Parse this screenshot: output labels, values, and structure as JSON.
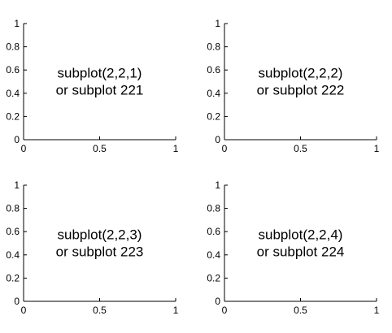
{
  "chart_data": [
    {
      "type": "scatter",
      "subplot": "2,2,1",
      "xlim": [
        0,
        1
      ],
      "ylim": [
        0,
        1
      ],
      "x_ticks": [
        "0",
        "0.5",
        "1"
      ],
      "y_ticks": [
        "0",
        "0.2",
        "0.4",
        "0.6",
        "0.8",
        "1"
      ],
      "grid": false,
      "series": [],
      "annotation": [
        "subplot(2,2,1)",
        "or subplot 221"
      ]
    },
    {
      "type": "scatter",
      "subplot": "2,2,2",
      "xlim": [
        0,
        1
      ],
      "ylim": [
        0,
        1
      ],
      "x_ticks": [
        "0",
        "0.5",
        "1"
      ],
      "y_ticks": [
        "0",
        "0.2",
        "0.4",
        "0.6",
        "0.8",
        "1"
      ],
      "grid": false,
      "series": [],
      "annotation": [
        "subplot(2,2,2)",
        "or subplot 222"
      ]
    },
    {
      "type": "scatter",
      "subplot": "2,2,3",
      "xlim": [
        0,
        1
      ],
      "ylim": [
        0,
        1
      ],
      "x_ticks": [
        "0",
        "0.5",
        "1"
      ],
      "y_ticks": [
        "0",
        "0.2",
        "0.4",
        "0.6",
        "0.8",
        "1"
      ],
      "grid": false,
      "series": [],
      "annotation": [
        "subplot(2,2,3)",
        "or subplot 223"
      ]
    },
    {
      "type": "scatter",
      "subplot": "2,2,4",
      "xlim": [
        0,
        1
      ],
      "ylim": [
        0,
        1
      ],
      "x_ticks": [
        "0",
        "0.5",
        "1"
      ],
      "y_ticks": [
        "0",
        "0.2",
        "0.4",
        "0.6",
        "0.8",
        "1"
      ],
      "grid": false,
      "series": [],
      "annotation": [
        "subplot(2,2,4)",
        "or subplot 224"
      ]
    }
  ]
}
